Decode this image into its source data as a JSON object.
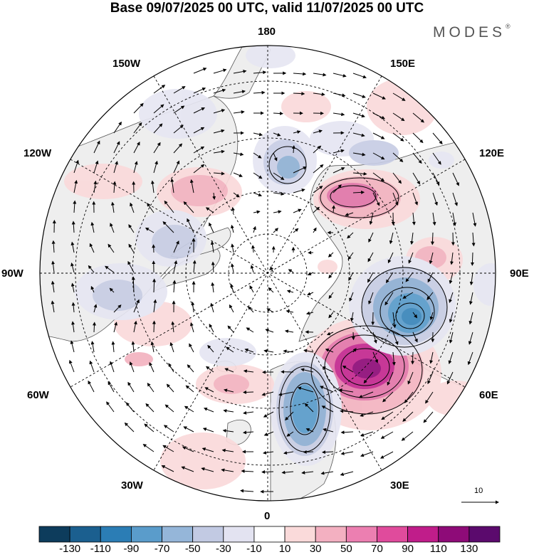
{
  "title": "Base 09/07/2025 00 UTC, valid 11/07/2025 00 UTC",
  "brand": {
    "name": "MODES",
    "mark": "®"
  },
  "map": {
    "projection": "north polar stereographic",
    "longitude_labels": {
      "top": "180",
      "bottom": "0",
      "left": "90W",
      "right": "90E",
      "upper_left": "150W",
      "upper_right": "150E",
      "mid_upper_left": "120W",
      "mid_upper_right": "120E",
      "mid_lower_left": "60W",
      "mid_lower_right": "60E",
      "lower_left": "30W",
      "lower_right": "30E"
    },
    "reference_vector_label": "10",
    "colors": {
      "land": "#eeeeee",
      "ocean": "#ffffff",
      "neg_light": "#e6e6f2",
      "neg_mid": "#c7cde4",
      "neg_strong": "#8fb0d3",
      "neg_deep": "#3b86bb",
      "pos_light": "#fadadb",
      "pos_mid": "#f3b3c0",
      "pos_strong": "#e276a9",
      "pos_deep": "#c3288f"
    }
  },
  "colorbar": {
    "ticks": [
      "-130",
      "-110",
      "-90",
      "-70",
      "-50",
      "-30",
      "-10",
      "10",
      "30",
      "50",
      "70",
      "90",
      "110",
      "130"
    ],
    "colors": [
      "#0d3c5c",
      "#1b5f8f",
      "#2b7db5",
      "#5a9ccb",
      "#95b6d9",
      "#c2cae3",
      "#e3e3f1",
      "#ffffff",
      "#fadada",
      "#f3b0c1",
      "#ec7fb1",
      "#e04b9c",
      "#c01d8a",
      "#8e0b78",
      "#5b0a6d"
    ]
  }
}
